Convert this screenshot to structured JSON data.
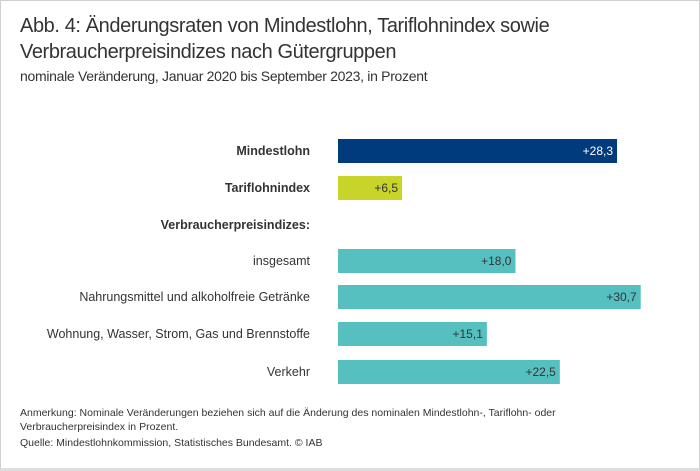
{
  "title": "Abb. 4: Änderungsraten von Mindestlohn, Tariflohnindex sowie Verbraucherpreisindizes nach Gütergruppen",
  "subtitle": "nominale Veränderung, Januar 2020 bis September 2023, in Prozent",
  "note": "Anmerkung: Nominale Veränderungen beziehen sich auf die Änderung des nominalen Mindestlohn-, Tariflohn- oder Verbraucherpreisindex in Prozent.",
  "source": "Quelle: Mindestlohnkommission, Statistisches Bundesamt. © IAB",
  "chart_data": {
    "type": "bar",
    "orientation": "horizontal",
    "group_label": "Verbraucherpreisindizes:",
    "categories": [
      "Mindestlohn",
      "Tariflohnindex",
      "insgesamt",
      "Nahrungsmittel und alkoholfreie Getränke",
      "Wohnung, Wasser, Strom, Gas und Brennstoffe",
      "Verkehr"
    ],
    "values": [
      28.3,
      6.5,
      18.0,
      30.7,
      15.1,
      22.5
    ],
    "data_labels": [
      "+28,3",
      "+6,5",
      "+18,0",
      "+30,7",
      "+15,1",
      "+22,5"
    ],
    "bold_categories": [
      "Mindestlohn",
      "Tariflohnindex"
    ],
    "colors": [
      "#003b7e",
      "#c9d42b",
      "#56c0c1",
      "#56c0c1",
      "#56c0c1",
      "#56c0c1"
    ],
    "label_colors": [
      "#ffffff",
      "#333333",
      "#333333",
      "#333333",
      "#333333",
      "#333333"
    ],
    "xlim": [
      0,
      31
    ],
    "grid": false
  }
}
